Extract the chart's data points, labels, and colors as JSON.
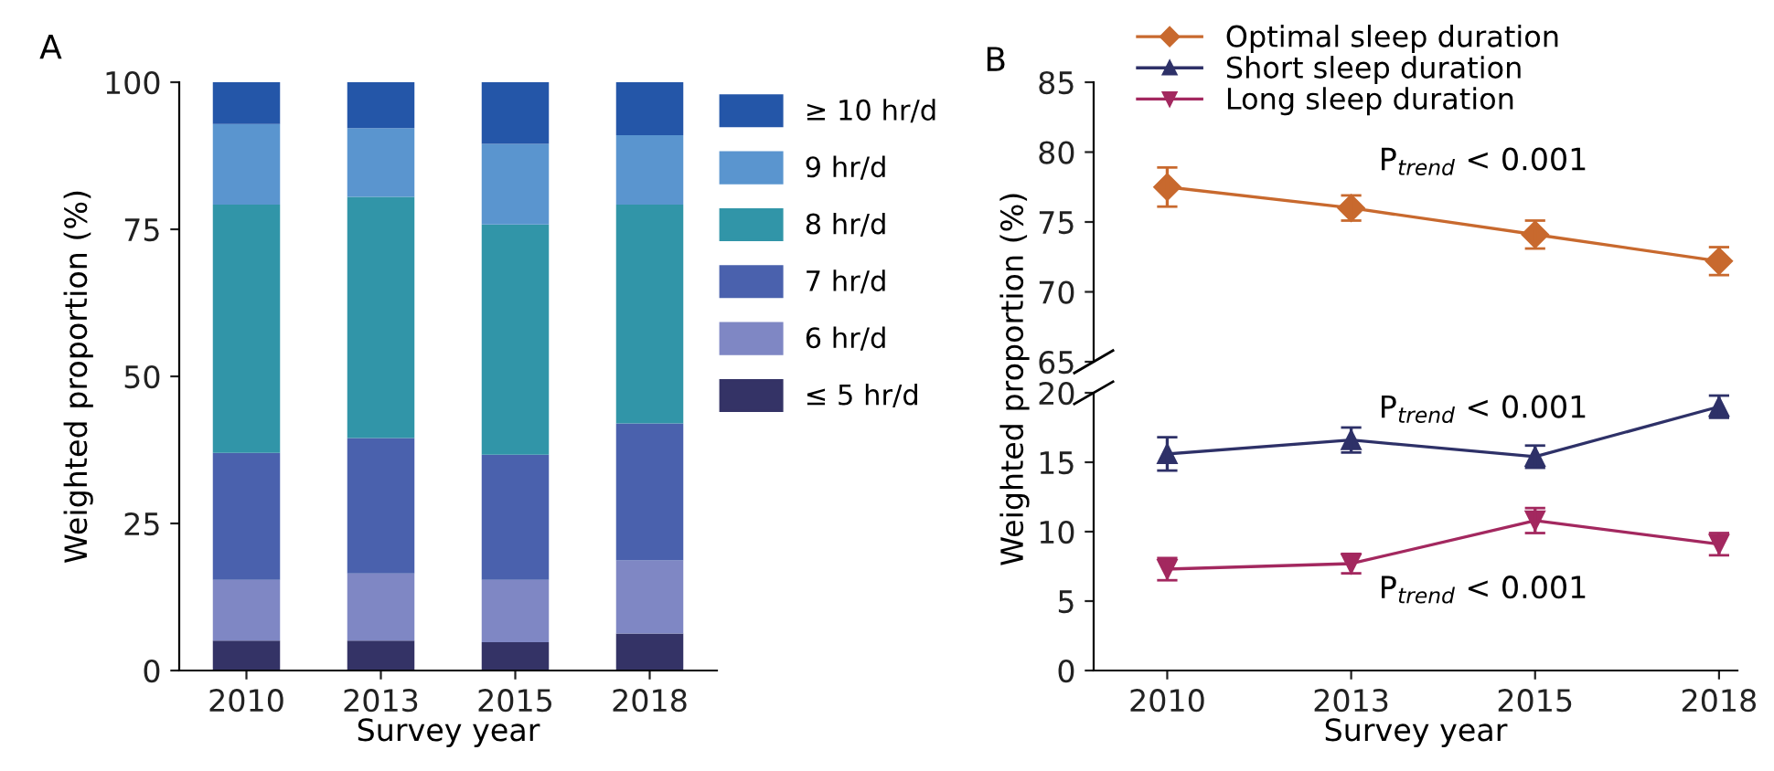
{
  "chart_data": [
    {
      "type": "bar",
      "stacked": true,
      "categories": [
        "2010",
        "2013",
        "2015",
        "2018"
      ],
      "xlabel": "Survey year",
      "ylabel": "Weighted proportion (%)",
      "ylim": [
        0,
        100
      ],
      "yticks": [
        0,
        25,
        50,
        75,
        100
      ],
      "grid": false,
      "legend": "right",
      "annotations": [
        "A"
      ],
      "series": [
        {
          "name": "≤ 5 hr/d",
          "color": "#343366",
          "values": [
            5.1,
            5.1,
            4.8,
            6.3
          ]
        },
        {
          "name": "6 hr/d",
          "color": "#7f87c4",
          "values": [
            10.3,
            11.4,
            10.6,
            12.4
          ]
        },
        {
          "name": "7 hr/d",
          "color": "#4a61ad",
          "values": [
            21.6,
            23.0,
            21.3,
            23.3
          ]
        },
        {
          "name": "8 hr/d",
          "color": "#3195a8",
          "values": [
            42.2,
            41.0,
            39.1,
            37.2
          ]
        },
        {
          "name": "9 hr/d",
          "color": "#5a95cf",
          "values": [
            13.7,
            11.7,
            13.7,
            11.8
          ]
        },
        {
          "name": "≥ 10 hr/d",
          "color": "#2456a8",
          "values": [
            7.1,
            7.8,
            10.5,
            9.0
          ]
        }
      ]
    },
    {
      "type": "line",
      "categories": [
        "2010",
        "2013",
        "2015",
        "2018"
      ],
      "ylim": [
        65,
        85
      ],
      "yticks": [
        65,
        70,
        75,
        80,
        85
      ],
      "tick_labels": "y",
      "grid": false,
      "legend": "top left",
      "annotations": [
        "B",
        "P$_{trend}$ < 0.001"
      ],
      "series": [
        {
          "name": "Optimal sleep duration",
          "color": "#c8692e",
          "marker": "diamond",
          "values": [
            77.5,
            76.0,
            74.1,
            72.2
          ],
          "errors": [
            1.4,
            0.9,
            1.0,
            1.0
          ]
        }
      ]
    },
    {
      "type": "line",
      "categories": [
        "2010",
        "2013",
        "2015",
        "2018"
      ],
      "xlabel": "Survey year",
      "ylabel": "Weighted proportion (%)",
      "ylim": [
        0,
        20
      ],
      "yticks": [
        0,
        5,
        10,
        15,
        20
      ],
      "grid": false,
      "legend": "top left",
      "annotations": [
        "P$_{trend}$ < 0.001",
        "P$_{trend}$ < 0.001"
      ],
      "series": [
        {
          "name": "Short sleep duration",
          "color": "#2e3168",
          "marker": "triangle",
          "values": [
            15.6,
            16.6,
            15.4,
            19.0
          ],
          "errors": [
            1.2,
            0.9,
            0.8,
            0.8
          ]
        },
        {
          "name": "Long sleep duration",
          "color": "#a3285f",
          "marker": "triangle_down",
          "values": [
            7.3,
            7.7,
            10.8,
            9.1
          ],
          "errors": [
            0.8,
            0.7,
            0.9,
            0.8
          ]
        }
      ]
    }
  ]
}
